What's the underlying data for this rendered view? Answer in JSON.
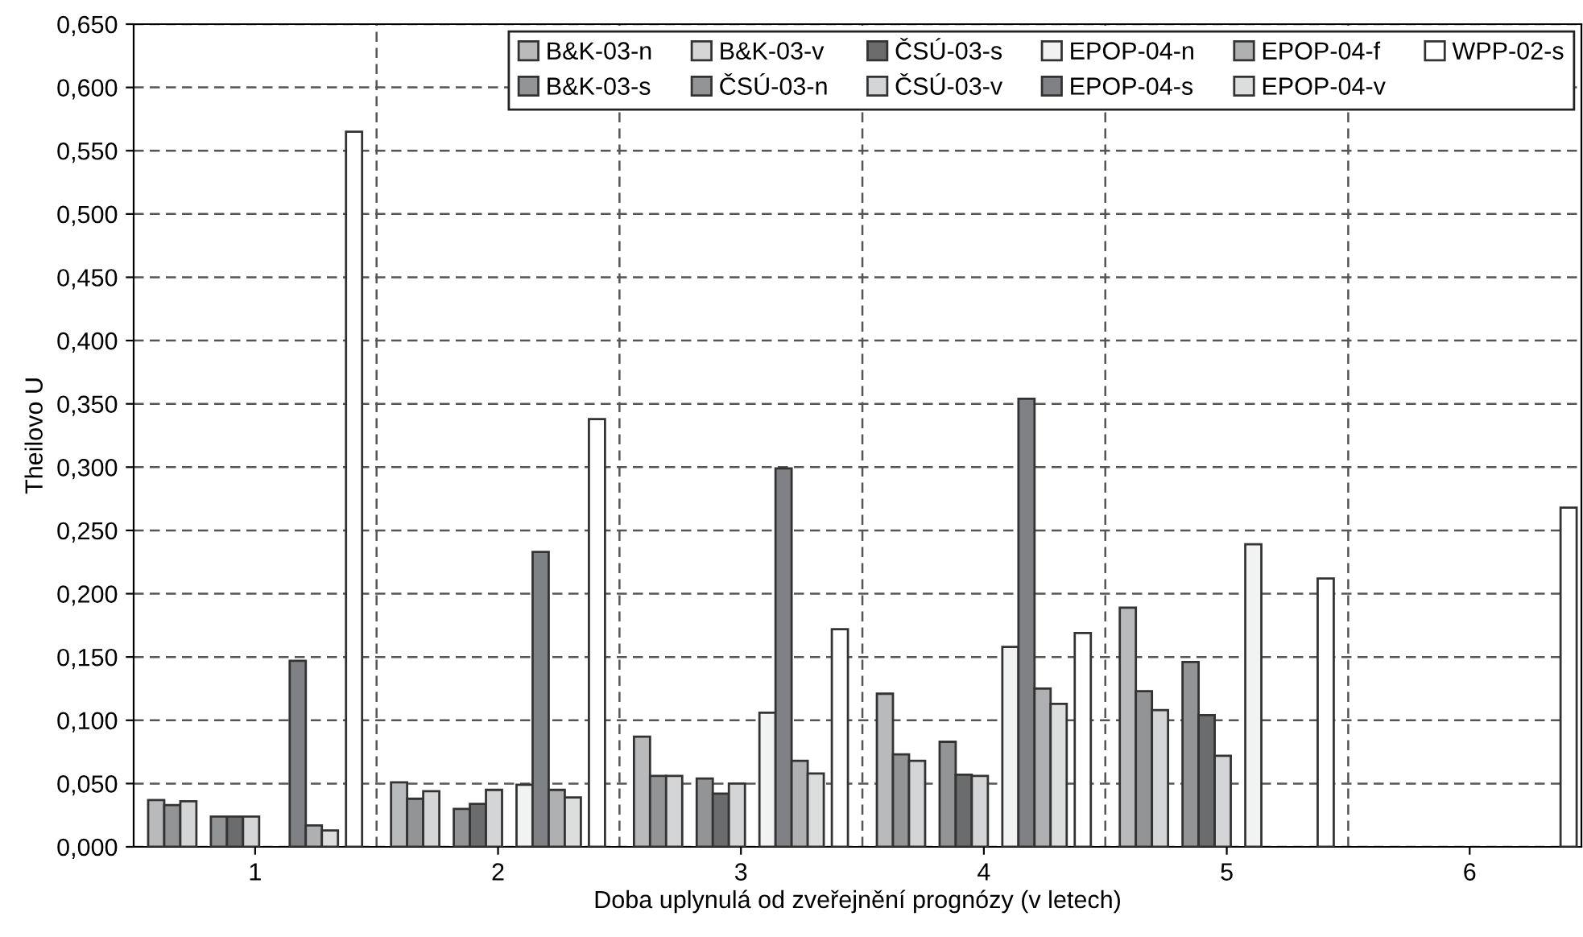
{
  "chart_data": {
    "type": "bar",
    "xlabel": "Doba uplynulá od zveřejnění prognózy (v letech)",
    "ylabel": "Theilovo U",
    "categories": [
      "1",
      "2",
      "3",
      "4",
      "5",
      "6"
    ],
    "ylim": [
      0,
      0.65
    ],
    "yticks": [
      {
        "value": 0,
        "label": "0,000"
      },
      {
        "value": 0.05,
        "label": "0,050"
      },
      {
        "value": 0.1,
        "label": "0,100"
      },
      {
        "value": 0.15,
        "label": "0,150"
      },
      {
        "value": 0.2,
        "label": "0,200"
      },
      {
        "value": 0.25,
        "label": "0,250"
      },
      {
        "value": 0.3,
        "label": "0,300"
      },
      {
        "value": 0.35,
        "label": "0,350"
      },
      {
        "value": 0.4,
        "label": "0,400"
      },
      {
        "value": 0.45,
        "label": "0,450"
      },
      {
        "value": 0.5,
        "label": "0,500"
      },
      {
        "value": 0.55,
        "label": "0,550"
      },
      {
        "value": 0.6,
        "label": "0,600"
      },
      {
        "value": 0.65,
        "label": "0,650"
      }
    ],
    "grid": true,
    "legend": "top right",
    "series": [
      {
        "name": "B&K-03-n",
        "color": "#b9babc",
        "values": [
          0.037,
          0.051,
          0.087,
          0.121,
          0.189,
          null
        ]
      },
      {
        "name": "B&K-03-s",
        "color": "#939496",
        "values": [
          0.033,
          0.038,
          0.056,
          0.073,
          0.123,
          null
        ]
      },
      {
        "name": "B&K-03-v",
        "color": "#d4d5d6",
        "values": [
          0.036,
          0.044,
          0.056,
          0.068,
          0.108,
          null
        ]
      },
      {
        "name": "ČSÚ-03-n",
        "color": "#939496",
        "values": [
          0.024,
          0.03,
          0.054,
          0.083,
          0.146,
          null
        ]
      },
      {
        "name": "ČSÚ-03-s",
        "color": "#6b6c6e",
        "values": [
          0.024,
          0.034,
          0.042,
          0.057,
          0.104,
          null
        ]
      },
      {
        "name": "ČSÚ-03-v",
        "color": "#d4d5d6",
        "values": [
          0.024,
          0.045,
          0.05,
          0.056,
          0.072,
          null
        ]
      },
      {
        "name": "EPOP-04-n",
        "color": "#f1f2f2",
        "values": [
          null,
          0.049,
          0.106,
          0.158,
          0.239,
          null
        ]
      },
      {
        "name": "EPOP-04-s",
        "color": "#808184",
        "values": [
          0.147,
          0.233,
          0.299,
          0.354,
          null,
          null
        ]
      },
      {
        "name": "EPOP-04-f",
        "color": "#aeb0b2",
        "values": [
          0.017,
          0.045,
          0.068,
          0.125,
          null,
          null
        ]
      },
      {
        "name": "EPOP-04-v",
        "color": "#dcdddd",
        "values": [
          0.013,
          0.039,
          0.058,
          0.113,
          null,
          null
        ]
      },
      {
        "name": "WPP-02-s",
        "color": "#ffffff",
        "values": [
          0.565,
          0.338,
          0.172,
          0.169,
          0.212,
          0.268
        ]
      }
    ]
  }
}
